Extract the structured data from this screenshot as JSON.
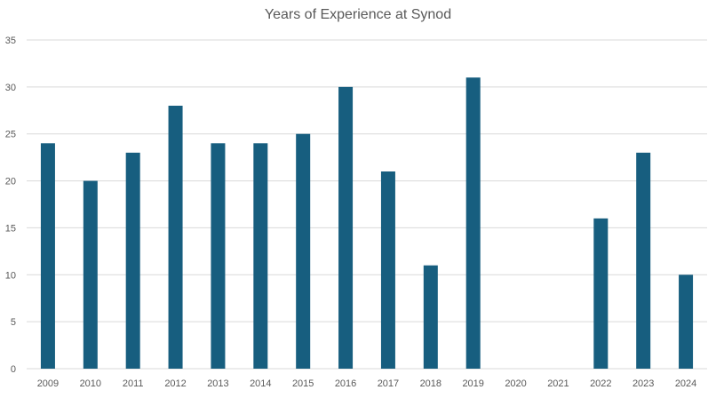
{
  "chart_data": {
    "type": "bar",
    "title": "Years of Experience at Synod",
    "xlabel": "",
    "ylabel": "",
    "categories": [
      "2009",
      "2010",
      "2011",
      "2012",
      "2013",
      "2014",
      "2015",
      "2016",
      "2017",
      "2018",
      "2019",
      "2020",
      "2021",
      "2022",
      "2023",
      "2024"
    ],
    "values": [
      24,
      20,
      23,
      28,
      24,
      24,
      25,
      30,
      21,
      11,
      31,
      0,
      0,
      16,
      23,
      10
    ],
    "ylim": [
      0,
      35
    ],
    "yticks": [
      0,
      5,
      10,
      15,
      20,
      25,
      30,
      35
    ],
    "grid": true,
    "legend": "none",
    "bar_color": "#175e7f",
    "grid_color": "#d9d9d9",
    "text_color": "#595959"
  }
}
